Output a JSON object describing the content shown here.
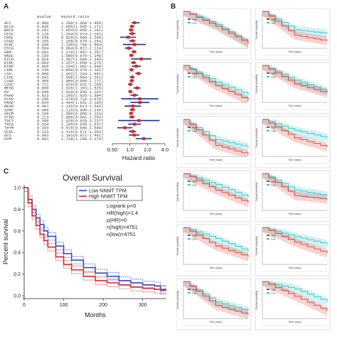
{
  "panels": {
    "a": "A",
    "b": "B",
    "c": "C"
  },
  "forest": {
    "headers": [
      "pvalue",
      "Hazard ratio"
    ],
    "rows": [
      {
        "cancer": "ACC",
        "pvalue": "0.000",
        "hr_text": "1.200(1.068-1.469)",
        "hr": 1.2,
        "lo": 1.07,
        "hi": 1.47
      },
      {
        "cancer": "BLCA",
        "pvalue": "0.036",
        "hr_text": "1.085(1.005-1.171)",
        "hr": 1.09,
        "lo": 1.01,
        "hi": 1.17
      },
      {
        "cancer": "BRCA",
        "pvalue": "0.291",
        "hr_text": "1.054(0.956-1.161)",
        "hr": 1.05,
        "lo": 0.96,
        "hi": 1.16
      },
      {
        "cancer": "CESC",
        "pvalue": "0.120",
        "hr_text": "1.104(0.974-1.252)",
        "hr": 1.1,
        "lo": 0.97,
        "hi": 1.25
      },
      {
        "cancer": "CHOL",
        "pvalue": "0.638",
        "hr_text": "0.928(0.680-1.266)",
        "hr": 0.93,
        "lo": 0.68,
        "hi": 1.27
      },
      {
        "cancer": "COAD",
        "pvalue": "0.105",
        "hr_text": "1.108(0.979-1.254)",
        "hr": 1.11,
        "lo": 0.98,
        "hi": 1.25
      },
      {
        "cancer": "DLBC",
        "pvalue": "0.440",
        "hr_text": "1.196(0.759-1.883)",
        "hr": 1.2,
        "lo": 0.76,
        "hi": 1.88
      },
      {
        "cancer": "ESCA",
        "pvalue": "0.554",
        "hr_text": "0.954(0.817-1.114)",
        "hr": 0.95,
        "lo": 0.82,
        "hi": 1.11
      },
      {
        "cancer": "GBM",
        "pvalue": "0.001",
        "hr_text": "1.176(1.067-1.297)",
        "hr": 1.18,
        "lo": 1.07,
        "hi": 1.3
      },
      {
        "cancer": "HNSC",
        "pvalue": "0.150",
        "hr_text": "1.060(0.979-1.148)",
        "hr": 1.06,
        "lo": 0.98,
        "hi": 1.15
      },
      {
        "cancer": "KICH",
        "pvalue": "0.028",
        "hr_text": "1.567(1.049-2.340)",
        "hr": 1.57,
        "lo": 1.05,
        "hi": 2.34
      },
      {
        "cancer": "KIRC",
        "pvalue": "0.003",
        "hr_text": "1.157(1.050-1.275)",
        "hr": 1.16,
        "lo": 1.05,
        "hi": 1.28
      },
      {
        "cancer": "KIRP",
        "pvalue": "0.005",
        "hr_text": "1.294(1.082-1.548)",
        "hr": 1.29,
        "lo": 1.08,
        "hi": 1.55
      },
      {
        "cancer": "LAML",
        "pvalue": "0.144",
        "hr_text": "1.066(0.978-1.162)",
        "hr": 1.07,
        "lo": 0.98,
        "hi": 1.16
      },
      {
        "cancer": "LGG",
        "pvalue": "0.000",
        "hr_text": "1.402(1.244-1.581)",
        "hr": 1.4,
        "lo": 1.24,
        "hi": 1.58
      },
      {
        "cancer": "LIHC",
        "pvalue": "0.041",
        "hr_text": "1.098(1.004-1.201)",
        "hr": 1.1,
        "lo": 1.0,
        "hi": 1.2
      },
      {
        "cancer": "LUAD",
        "pvalue": "0.066",
        "hr_text": "1.080(0.995-1.172)",
        "hr": 1.08,
        "lo": 1.0,
        "hi": 1.17
      },
      {
        "cancer": "LUSC",
        "pvalue": "0.721",
        "hr_text": "1.016(0.931-1.109)",
        "hr": 1.02,
        "lo": 0.93,
        "hi": 1.11
      },
      {
        "cancer": "MESO",
        "pvalue": "0.000",
        "hr_text": "1.326(1.153-1.525)",
        "hr": 1.33,
        "lo": 1.15,
        "hi": 1.53
      },
      {
        "cancer": "OV",
        "pvalue": "0.640",
        "hr_text": "1.019(0.942-1.102)",
        "hr": 1.02,
        "lo": 0.94,
        "hi": 1.1
      },
      {
        "cancer": "PAAD",
        "pvalue": "0.023",
        "hr_text": "1.195(1.025-1.394)",
        "hr": 1.2,
        "lo": 1.03,
        "hi": 1.39
      },
      {
        "cancer": "PCPG",
        "pvalue": "0.296",
        "hr_text": "1.478(0.710-3.076)",
        "hr": 1.48,
        "lo": 0.71,
        "hi": 3.08
      },
      {
        "cancer": "PRAD",
        "pvalue": "0.034",
        "hr_text": "1.494(1.031-2.165)",
        "hr": 1.49,
        "lo": 1.03,
        "hi": 2.17
      },
      {
        "cancer": "READ",
        "pvalue": "0.487",
        "hr_text": "1.120(0.813-1.543)",
        "hr": 1.12,
        "lo": 0.81,
        "hi": 1.54
      },
      {
        "cancer": "SARC",
        "pvalue": "0.058",
        "hr_text": "1.110(0.996-1.236)",
        "hr": 1.11,
        "lo": 1.0,
        "hi": 1.24
      },
      {
        "cancer": "SKCM",
        "pvalue": "0.165",
        "hr_text": "1.050(0.980-1.124)",
        "hr": 1.05,
        "lo": 0.98,
        "hi": 1.12
      },
      {
        "cancer": "STAD",
        "pvalue": "0.113",
        "hr_text": "1.086(0.981-1.203)",
        "hr": 1.09,
        "lo": 0.98,
        "hi": 1.2
      },
      {
        "cancer": "TGCT",
        "pvalue": "0.396",
        "hr_text": "1.426(0.628-3.237)",
        "hr": 1.43,
        "lo": 0.63,
        "hi": 3.24
      },
      {
        "cancer": "THCA",
        "pvalue": "0.164",
        "hr_text": "1.195(0.930-1.537)",
        "hr": 1.2,
        "lo": 0.93,
        "hi": 1.54
      },
      {
        "cancer": "THYM",
        "pvalue": "0.183",
        "hr_text": "0.818(0.609-1.099)",
        "hr": 0.82,
        "lo": 0.61,
        "hi": 1.1
      },
      {
        "cancer": "UCEC",
        "pvalue": "0.123",
        "hr_text": "1.116(0.971-1.283)",
        "hr": 1.12,
        "lo": 0.97,
        "hi": 1.28
      },
      {
        "cancer": "UCS",
        "pvalue": "0.093",
        "hr_text": "1.191(0.971-1.461)",
        "hr": 1.19,
        "lo": 0.97,
        "hi": 1.46
      },
      {
        "cancer": "UVM",
        "pvalue": "0.001",
        "hr_text": "1.728(1.258-2.374)",
        "hr": 1.73,
        "lo": 1.26,
        "hi": 2.37
      }
    ]
  },
  "km_grid": {
    "xlabel": "Time (days)",
    "ylabel": "Survival probability",
    "legend": [
      "High",
      "Low"
    ],
    "colors": {
      "high": "#d73a2f",
      "low": "#35c3c3"
    }
  },
  "overall": {
    "legend": [
      "Low NNMT TPM",
      "High NNMT TPM"
    ],
    "colors": {
      "low": "#2b4fc6",
      "high": "#d8282e"
    },
    "stats": [
      "Logrank p=0",
      "HR(high)=1.4",
      "p(HR)=0",
      "n(high)=4751",
      "n(low)=4751"
    ]
  },
  "chart_data": [
    {
      "type": "scatter",
      "title": "",
      "xlabel": "Hazard ratio",
      "xscale": "log",
      "xlim": [
        0.5,
        4.0
      ],
      "xticks": [
        "0.50",
        "1.0",
        "2.0",
        "4.0"
      ],
      "reference_line": 1.0,
      "categories": [
        "ACC",
        "BLCA",
        "BRCA",
        "CESC",
        "CHOL",
        "COAD",
        "DLBC",
        "ESCA",
        "GBM",
        "HNSC",
        "KICH",
        "KIRC",
        "KIRP",
        "LAML",
        "LGG",
        "LIHC",
        "LUAD",
        "LUSC",
        "MESO",
        "OV",
        "PAAD",
        "PCPG",
        "PRAD",
        "READ",
        "SARC",
        "SKCM",
        "STAD",
        "TGCT",
        "THCA",
        "THYM",
        "UCEC",
        "UCS",
        "UVM"
      ],
      "point_color": "#d42a2a",
      "ci_color": "#1f2f9a"
    },
    {
      "type": "line",
      "title": "Overall Survival",
      "xlabel": "Months",
      "ylabel": "Percent survival",
      "xlim": [
        0,
        360
      ],
      "ylim": [
        0,
        1.0
      ],
      "xticks": [
        "0",
        "100",
        "200",
        "300"
      ],
      "yticks": [
        "0.0",
        "0.2",
        "0.4",
        "0.6",
        "0.8",
        "1.0"
      ],
      "legend_position": "top-right",
      "x": [
        0,
        10,
        20,
        30,
        40,
        50,
        60,
        80,
        100,
        120,
        150,
        180,
        210,
        240,
        270,
        300,
        330,
        345,
        360
      ],
      "series": [
        {
          "name": "Low NNMT TPM",
          "values": [
            1.0,
            0.89,
            0.8,
            0.72,
            0.66,
            0.6,
            0.55,
            0.46,
            0.39,
            0.33,
            0.26,
            0.21,
            0.18,
            0.14,
            0.12,
            0.1,
            0.09,
            0.06,
            0.06
          ]
        },
        {
          "name": "High NNMT TPM",
          "values": [
            1.0,
            0.86,
            0.74,
            0.65,
            0.57,
            0.51,
            0.45,
            0.36,
            0.29,
            0.24,
            0.18,
            0.14,
            0.12,
            0.1,
            0.08,
            0.07,
            0.06,
            0.05,
            0.05
          ]
        }
      ]
    }
  ]
}
